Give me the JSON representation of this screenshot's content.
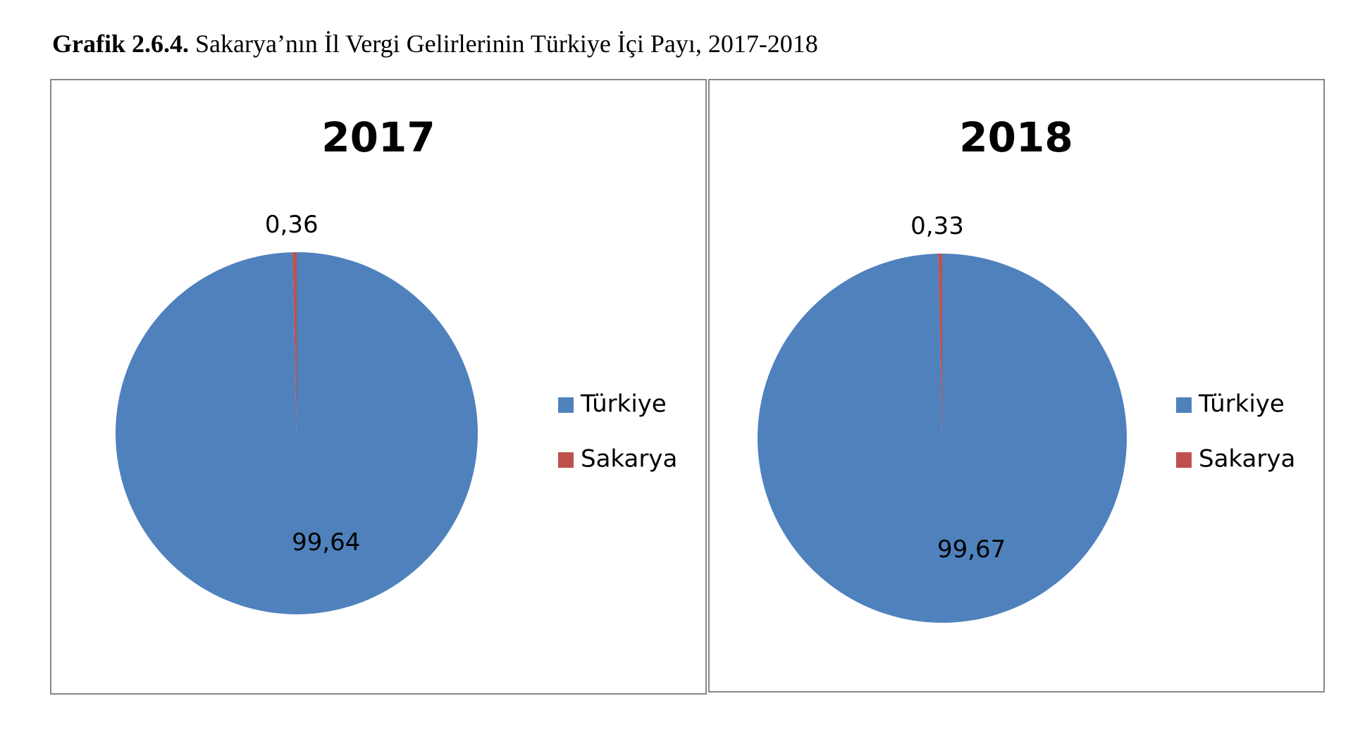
{
  "caption": {
    "label": "Grafik 2.6.4.",
    "text": "Sakarya’nın İl Vergi Gelirlerinin Türkiye İçi Payı, 2017-2018"
  },
  "chart_data": [
    {
      "type": "pie",
      "title": "2017",
      "categories": [
        "Türkiye",
        "Sakarya"
      ],
      "values": [
        99.64,
        0.36
      ],
      "value_labels": [
        "99,64",
        "0,36"
      ],
      "colors": [
        "#4f81bd",
        "#c0504d"
      ],
      "legend": "right"
    },
    {
      "type": "pie",
      "title": "2018",
      "categories": [
        "Türkiye",
        "Sakarya"
      ],
      "values": [
        99.67,
        0.33
      ],
      "value_labels": [
        "99,67",
        "0,33"
      ],
      "colors": [
        "#4f81bd",
        "#c0504d"
      ],
      "legend": "right"
    }
  ]
}
